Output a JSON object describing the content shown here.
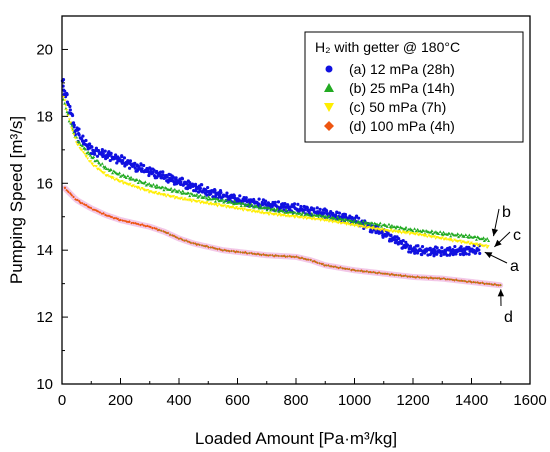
{
  "chart_data": {
    "type": "scatter",
    "title": "",
    "xlabel": "Loaded Amount [Pa·m³/kg]",
    "ylabel": "Pumping Speed [m³/s]",
    "xlim": [
      0,
      1600
    ],
    "ylim": [
      10,
      21
    ],
    "x_ticks": [
      "0",
      "200",
      "400",
      "600",
      "800",
      "1000",
      "1200",
      "1400",
      "1600"
    ],
    "y_ticks": [
      "10",
      "12",
      "14",
      "16",
      "18",
      "20"
    ],
    "grid": false,
    "legend": {
      "title": "H₂ with getter @ 180°C",
      "placement": "top-right"
    },
    "series": [
      {
        "name": "(a) 12 mPa (28h)",
        "label": "a",
        "color": "#1010e0",
        "marker": "circle",
        "x": [
          0,
          25,
          50,
          100,
          150,
          200,
          250,
          300,
          400,
          500,
          600,
          700,
          800,
          900,
          1000,
          1050,
          1100,
          1150,
          1200,
          1300,
          1400,
          1430
        ],
        "y": [
          19.1,
          18.2,
          17.5,
          17.0,
          16.85,
          16.7,
          16.5,
          16.35,
          16.05,
          15.75,
          15.5,
          15.35,
          15.25,
          15.1,
          14.9,
          14.7,
          14.5,
          14.25,
          14.0,
          13.95,
          14.0,
          14.0
        ]
      },
      {
        "name": "(b) 25 mPa (14h)",
        "label": "b",
        "color": "#22aa22",
        "marker": "triangle-up",
        "x": [
          5,
          25,
          50,
          100,
          150,
          200,
          250,
          300,
          400,
          500,
          600,
          700,
          800,
          900,
          1000,
          1100,
          1200,
          1300,
          1400,
          1460
        ],
        "y": [
          18.5,
          17.9,
          17.3,
          16.8,
          16.45,
          16.25,
          16.1,
          15.95,
          15.75,
          15.55,
          15.4,
          15.25,
          15.1,
          15.0,
          14.85,
          14.75,
          14.6,
          14.5,
          14.4,
          14.3
        ]
      },
      {
        "name": "(c) 50 mPa (7h)",
        "label": "c",
        "color": "#ffee00",
        "marker": "triangle-down",
        "x": [
          5,
          25,
          50,
          100,
          150,
          200,
          250,
          300,
          400,
          500,
          600,
          700,
          800,
          900,
          1000,
          1100,
          1200,
          1300,
          1400,
          1460
        ],
        "y": [
          18.6,
          17.9,
          17.2,
          16.6,
          16.25,
          16.05,
          15.9,
          15.75,
          15.55,
          15.4,
          15.25,
          15.1,
          15.0,
          14.9,
          14.75,
          14.6,
          14.5,
          14.35,
          14.2,
          14.1
        ]
      },
      {
        "name": "(d) 100 mPa (4h)",
        "label": "d",
        "color": "#ee5511",
        "marker": "diamond",
        "x": [
          10,
          50,
          100,
          150,
          200,
          250,
          300,
          350,
          400,
          450,
          500,
          550,
          600,
          700,
          800,
          850,
          900,
          1000,
          1100,
          1200,
          1300,
          1400,
          1500
        ],
        "y": [
          15.85,
          15.5,
          15.25,
          15.05,
          14.9,
          14.8,
          14.7,
          14.55,
          14.35,
          14.2,
          14.1,
          14.0,
          13.95,
          13.85,
          13.8,
          13.7,
          13.55,
          13.4,
          13.3,
          13.2,
          13.15,
          13.05,
          12.95
        ]
      }
    ]
  }
}
